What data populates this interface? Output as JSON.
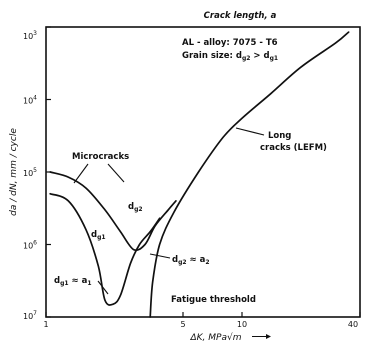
{
  "chart_data": {
    "type": "line",
    "title": "Crack length, a",
    "xlabel": "ΔK, MPa√m",
    "ylabel": "da / dN,  mm / cycle",
    "xscale": "log",
    "yscale": "log",
    "xlim": [
      1,
      40
    ],
    "ylim": [
      1e-07,
      0.001
    ],
    "x_ticks": [
      {
        "value": 1,
        "label": "1"
      },
      {
        "value": 5,
        "label": "5"
      },
      {
        "value": 10,
        "label": "10"
      },
      {
        "value": 40,
        "label": "40"
      }
    ],
    "y_ticks": [
      {
        "value": 0.001,
        "label": "10",
        "exp": "3"
      },
      {
        "value": 0.0001,
        "label": "10",
        "exp": "4"
      },
      {
        "value": 1e-05,
        "label": "10",
        "exp": "5"
      },
      {
        "value": 1e-06,
        "label": "10",
        "exp": "6"
      },
      {
        "value": 1e-07,
        "label": "10",
        "exp": "7"
      }
    ],
    "info": {
      "alloy": "AL - alloy: 7075 - T6",
      "grain_prefix": "Grain size: d",
      "grain_sub1": "g2",
      "grain_mid": " > d",
      "grain_sub2": "g1"
    },
    "series": [
      {
        "points": [
          [
            1.05,
            1e-05
          ],
          [
            1.3,
            8.5e-06
          ],
          [
            1.6,
            6e-06
          ],
          [
            2.0,
            3e-06
          ],
          [
            2.4,
            1.5e-06
          ],
          [
            2.8,
            8.5e-07
          ],
          [
            3.2,
            1e-06
          ],
          [
            3.6,
            1.8e-06
          ],
          [
            4.2,
            3e-06
          ],
          [
            4.6,
            4e-06
          ]
        ]
      },
      {
        "points": [
          [
            1.05,
            5e-06
          ],
          [
            1.3,
            4e-06
          ],
          [
            1.6,
            1.6e-06
          ],
          [
            1.85,
            5e-07
          ],
          [
            2.0,
            1.7e-07
          ],
          [
            2.2,
            1.5e-07
          ],
          [
            2.4,
            2e-07
          ],
          [
            2.7,
            5.5e-07
          ],
          [
            3.0,
            1e-06
          ],
          [
            3.4,
            1.5e-06
          ],
          [
            3.8,
            2.3e-06
          ]
        ]
      },
      {
        "points": [
          [
            3.4,
            1e-07
          ],
          [
            3.5,
            3e-07
          ],
          [
            3.8,
            1e-06
          ],
          [
            4.5,
            2.8e-06
          ],
          [
            6.0,
            1e-05
          ],
          [
            8.0,
            3e-05
          ],
          [
            10.0,
            5.5e-05
          ],
          [
            14.0,
            0.00012
          ],
          [
            20.0,
            0.00028
          ],
          [
            30.0,
            0.0006
          ],
          [
            35.0,
            0.00085
          ]
        ]
      }
    ],
    "annotations": {
      "microcracks": "Microcracks",
      "long_line1": "Long",
      "long_line2": "cracks (LEFM)",
      "fatigue_threshold": "Fatigue threshold",
      "dg2_label": "d",
      "dg2_sub": "g2",
      "dg1_label": "d",
      "dg1_sub": "g1",
      "eq_a1_pre": "d",
      "eq_a1_sub1": "g1",
      "eq_a1_mid": " ≈ a",
      "eq_a1_sub2": "1",
      "eq_a2_pre": "d",
      "eq_a2_sub1": "g2",
      "eq_a2_mid": " ≈ a",
      "eq_a2_sub2": "2"
    },
    "grid": false,
    "legend": "none"
  }
}
